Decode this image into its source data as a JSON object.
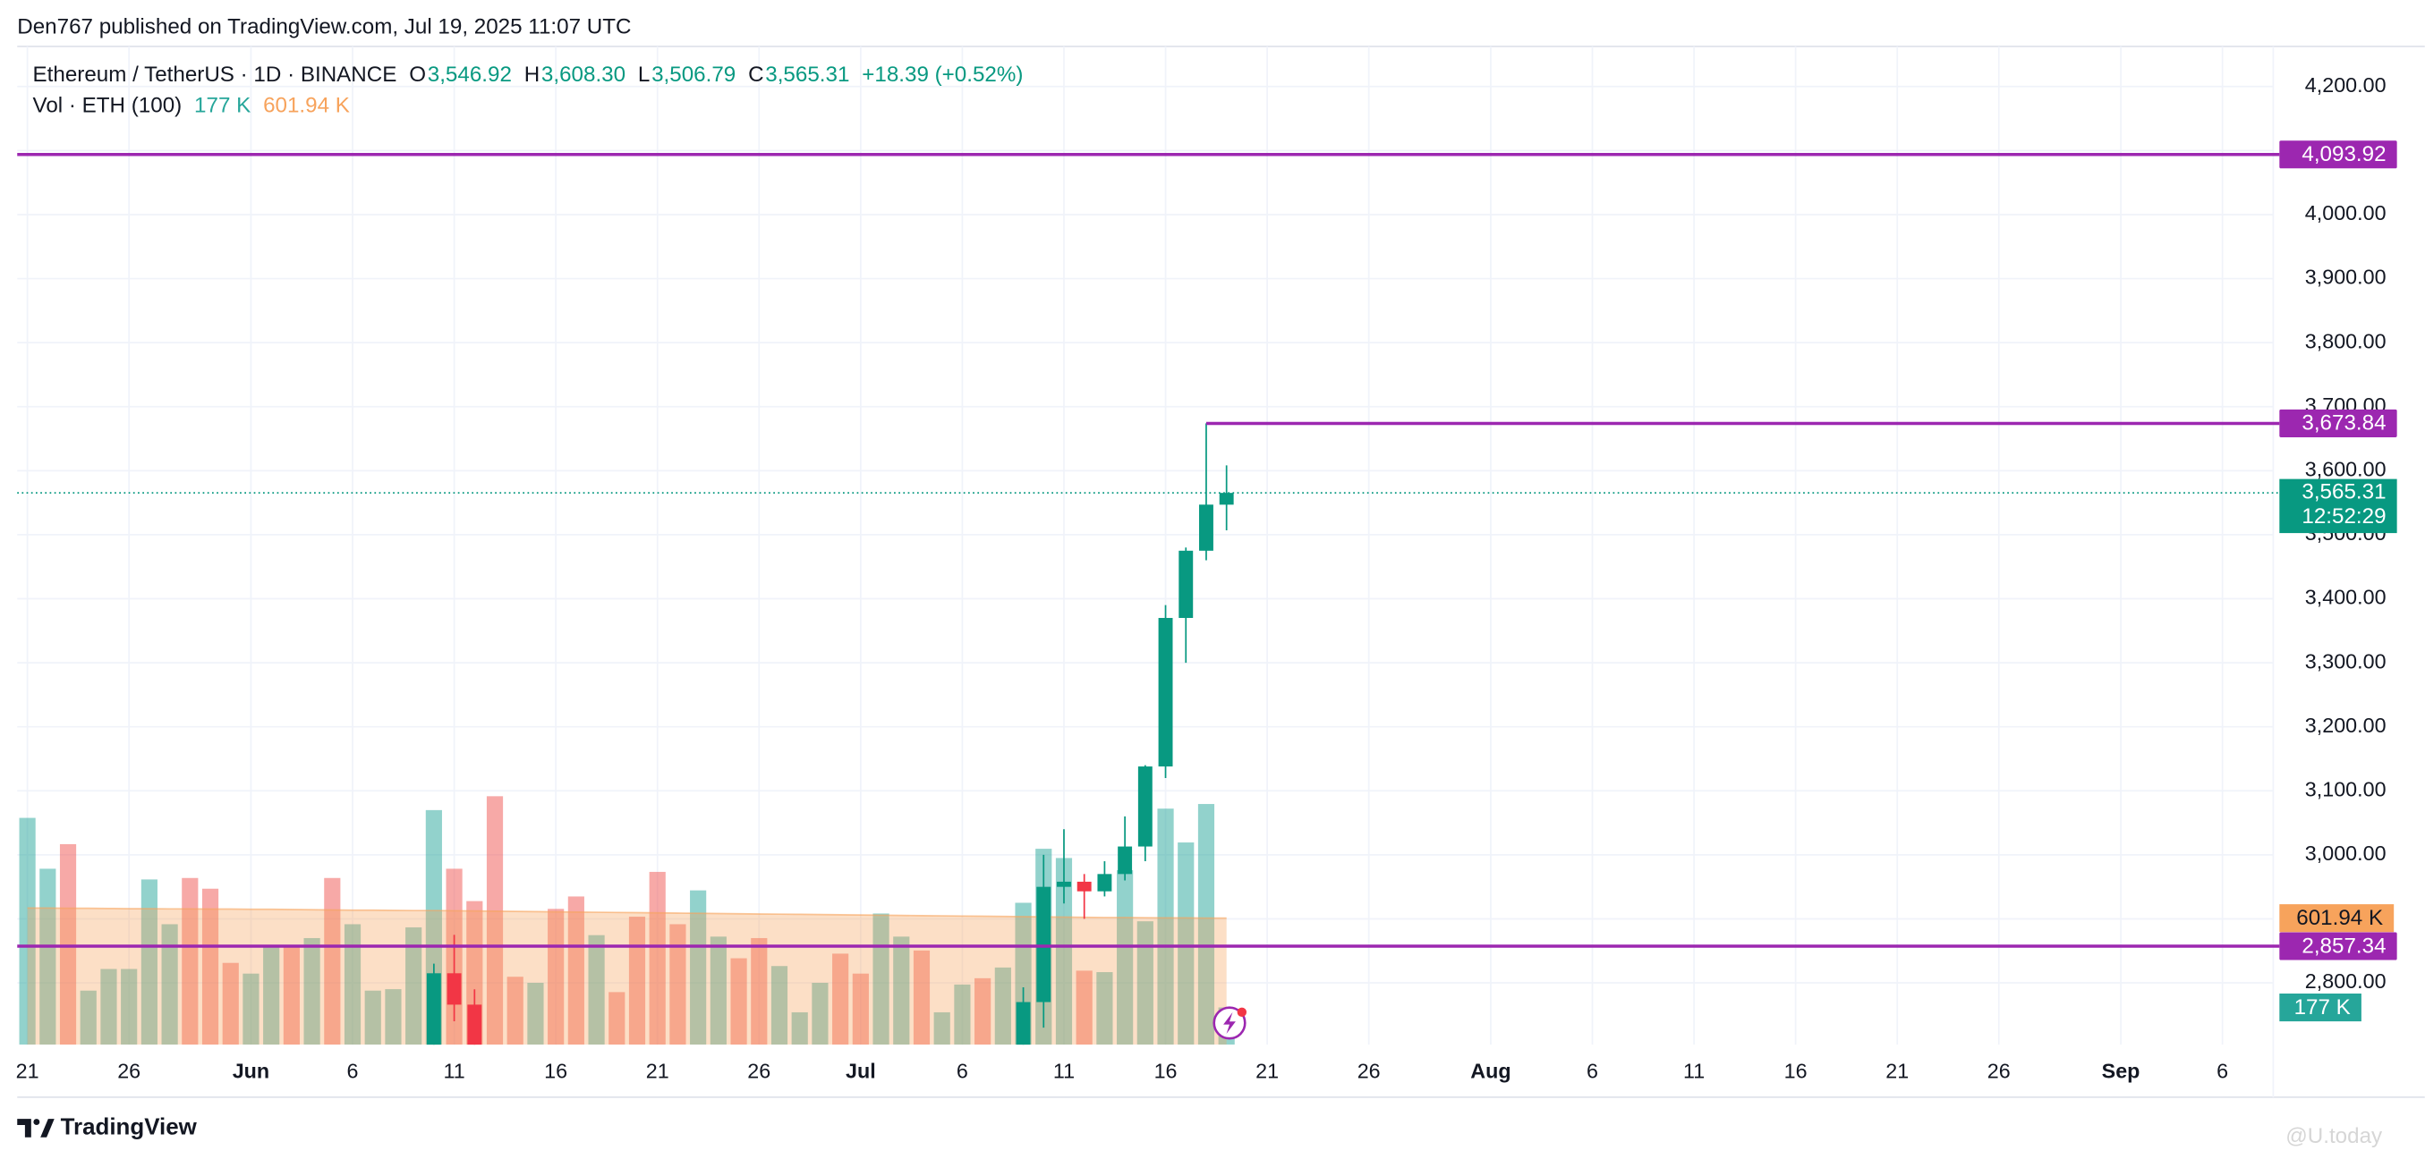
{
  "header": "Den767 published on TradingView.com, Jul 19, 2025 11:07 UTC",
  "brand": "TradingView",
  "watermark": "@U.today",
  "chart_data": {
    "type": "candlestick",
    "symbol": "Ethereum / TetherUS · 1D · BINANCE",
    "ohlc_legend": [
      {
        "key": "O",
        "text": "3,546.92"
      },
      {
        "key": "H",
        "text": "3,608.30"
      },
      {
        "key": "L",
        "text": "3,506.79"
      },
      {
        "key": "C",
        "text": "3,565.31"
      }
    ],
    "change": "+18.39 (+0.52%)",
    "up_color": "#089981",
    "down_color": "#f23645",
    "x": [
      "Jun 10",
      "Jun 11",
      "Jun 12",
      "Jul 9",
      "Jul 10",
      "Jul 11",
      "Jul 12",
      "Jul 13",
      "Jul 14",
      "Jul 15",
      "Jul 16",
      "Jul 17",
      "Jul 18",
      "Jul 19"
    ],
    "open": [
      2680,
      2815,
      2766,
      2618,
      2770,
      2950,
      2958,
      2943,
      2970,
      3013,
      3138,
      3370,
      3475,
      3546.92
    ],
    "high": [
      2830,
      2875,
      2790,
      2793,
      3000,
      3040,
      2970,
      2990,
      3060,
      3140,
      3390,
      3480,
      3674,
      3608.3
    ],
    "low": [
      2665,
      2740,
      2620,
      2610,
      2730,
      2924,
      2900,
      2935,
      2960,
      2990,
      3120,
      3300,
      3460,
      3506.79
    ],
    "close": [
      2815,
      2766,
      2643,
      2770,
      2950,
      2958,
      2943,
      2970,
      3013,
      3138,
      3370,
      3475,
      3547,
      3565.31
    ],
    "xlim": [
      "May 21",
      "Sep 8"
    ],
    "xticks": [
      {
        "value": "May 21",
        "label": "21"
      },
      {
        "value": "May 26",
        "label": "26"
      },
      {
        "value": "Jun 1",
        "label": "Jun"
      },
      {
        "value": "Jun 6",
        "label": "6"
      },
      {
        "value": "Jun 11",
        "label": "11"
      },
      {
        "value": "Jun 16",
        "label": "16"
      },
      {
        "value": "Jun 21",
        "label": "21"
      },
      {
        "value": "Jun 26",
        "label": "26"
      },
      {
        "value": "Jul 1",
        "label": "Jul"
      },
      {
        "value": "Jul 6",
        "label": "6"
      },
      {
        "value": "Jul 11",
        "label": "11"
      },
      {
        "value": "Jul 16",
        "label": "16"
      },
      {
        "value": "Jul 21",
        "label": "21"
      },
      {
        "value": "Jul 26",
        "label": "26"
      },
      {
        "value": "Aug 1",
        "label": "Aug"
      },
      {
        "value": "Aug 6",
        "label": "6"
      },
      {
        "value": "Aug 11",
        "label": "11"
      },
      {
        "value": "Aug 16",
        "label": "16"
      },
      {
        "value": "Aug 21",
        "label": "21"
      },
      {
        "value": "Aug 26",
        "label": "26"
      },
      {
        "value": "Sep 1",
        "label": "Sep"
      },
      {
        "value": "Sep 6",
        "label": "6"
      }
    ],
    "ylim": [
      2703.5,
      4262.8
    ],
    "yticks": [
      {
        "value": 2800,
        "label": "2,800.00"
      },
      {
        "value": 2900,
        "label": "2,900.00"
      },
      {
        "value": 3000,
        "label": "3,000.00"
      },
      {
        "value": 3100,
        "label": "3,100.00"
      },
      {
        "value": 3200,
        "label": "3,200.00"
      },
      {
        "value": 3300,
        "label": "3,300.00"
      },
      {
        "value": 3400,
        "label": "3,400.00"
      },
      {
        "value": 3500,
        "label": "3,500.00"
      },
      {
        "value": 3600,
        "label": "3,600.00"
      },
      {
        "value": 3700,
        "label": "3,700.00"
      },
      {
        "value": 3800,
        "label": "3,800.00"
      },
      {
        "value": 3900,
        "label": "3,900.00"
      },
      {
        "value": 4000,
        "label": "4,000.00"
      },
      {
        "value": 4100,
        "label": "4,100.00"
      },
      {
        "value": 4200,
        "label": "4,200.00"
      }
    ],
    "grid": true,
    "levels": [
      {
        "value": 4093.92,
        "label": "4,093.92",
        "color": "#9c27b0"
      },
      {
        "value": 3673.84,
        "label": "3,673.84",
        "color": "#9c27b0",
        "start": "Jul 18"
      },
      {
        "value": 2857.34,
        "label": "2,857.34",
        "color": "#9c27b0"
      }
    ],
    "last_price": {
      "value": 3565.31,
      "label": "3,565.31",
      "countdown": "12:52:29"
    },
    "volume": {
      "legend": "Vol · ETH (100)",
      "last_label": "177 K",
      "ma_label": "601.94 K",
      "ma_color": "#f7a35c",
      "lim": [
        0,
        4750
      ],
      "x": [
        "May 21",
        "May 22",
        "May 23",
        "May 24",
        "May 25",
        "May 26",
        "May 27",
        "May 28",
        "May 29",
        "May 30",
        "May 31",
        "Jun 1",
        "Jun 2",
        "Jun 3",
        "Jun 4",
        "Jun 5",
        "Jun 6",
        "Jun 7",
        "Jun 8",
        "Jun 9",
        "Jun 10",
        "Jun 11",
        "Jun 12",
        "Jun 13",
        "Jun 14",
        "Jun 15",
        "Jun 16",
        "Jun 17",
        "Jun 18",
        "Jun 19",
        "Jun 20",
        "Jun 21",
        "Jun 22",
        "Jun 23",
        "Jun 24",
        "Jun 25",
        "Jun 26",
        "Jun 27",
        "Jun 28",
        "Jun 29",
        "Jun 30",
        "Jul 1",
        "Jul 2",
        "Jul 3",
        "Jul 4",
        "Jul 5",
        "Jul 6",
        "Jul 7",
        "Jul 8",
        "Jul 9",
        "Jul 10",
        "Jul 11",
        "Jul 12",
        "Jul 13",
        "Jul 14",
        "Jul 15",
        "Jul 16",
        "Jul 17",
        "Jul 18",
        "Jul 19"
      ],
      "values": [
        1079,
        837,
        954,
        257,
        360,
        360,
        786,
        573,
        793,
        742,
        389,
        338,
        463,
        463,
        507,
        793,
        573,
        257,
        264,
        558,
        1116,
        837,
        683,
        1182,
        323,
        294,
        646,
        705,
        521,
        250,
        609,
        822,
        573,
        734,
        514,
        411,
        507,
        374,
        154,
        294,
        433,
        338,
        624,
        514,
        448,
        154,
        286,
        316,
        367,
        675,
        932,
        888,
        352,
        345,
        830,
        587,
        1123,
        962,
        1145,
        177
      ],
      "colors": [
        "#26a69a",
        "#26a69a",
        "#ef5350",
        "#26a69a",
        "#26a69a",
        "#26a69a",
        "#26a69a",
        "#26a69a",
        "#ef5350",
        "#ef5350",
        "#ef5350",
        "#26a69a",
        "#26a69a",
        "#ef5350",
        "#26a69a",
        "#ef5350",
        "#26a69a",
        "#26a69a",
        "#26a69a",
        "#26a69a",
        "#26a69a",
        "#ef5350",
        "#ef5350",
        "#ef5350",
        "#ef5350",
        "#26a69a",
        "#ef5350",
        "#ef5350",
        "#26a69a",
        "#ef5350",
        "#ef5350",
        "#ef5350",
        "#ef5350",
        "#26a69a",
        "#26a69a",
        "#ef5350",
        "#ef5350",
        "#26a69a",
        "#26a69a",
        "#26a69a",
        "#ef5350",
        "#ef5350",
        "#26a69a",
        "#26a69a",
        "#ef5350",
        "#26a69a",
        "#26a69a",
        "#ef5350",
        "#26a69a",
        "#26a69a",
        "#26a69a",
        "#26a69a",
        "#ef5350",
        "#26a69a",
        "#26a69a",
        "#26a69a",
        "#26a69a",
        "#26a69a",
        "#26a69a",
        "#26a69a"
      ],
      "ma": [
        650,
        650,
        649,
        649,
        648,
        647,
        647,
        646,
        646,
        645,
        645,
        644,
        644,
        643,
        642,
        641,
        640,
        640,
        639,
        638,
        638,
        637,
        636,
        635,
        634,
        633,
        632,
        631,
        630,
        629,
        628,
        627,
        626,
        625,
        624,
        623,
        622,
        621,
        620,
        619,
        618,
        617,
        616,
        615,
        614,
        613,
        612,
        611,
        610,
        609,
        608,
        607,
        606,
        605,
        605,
        604,
        603,
        603,
        602,
        601.94
      ]
    }
  }
}
